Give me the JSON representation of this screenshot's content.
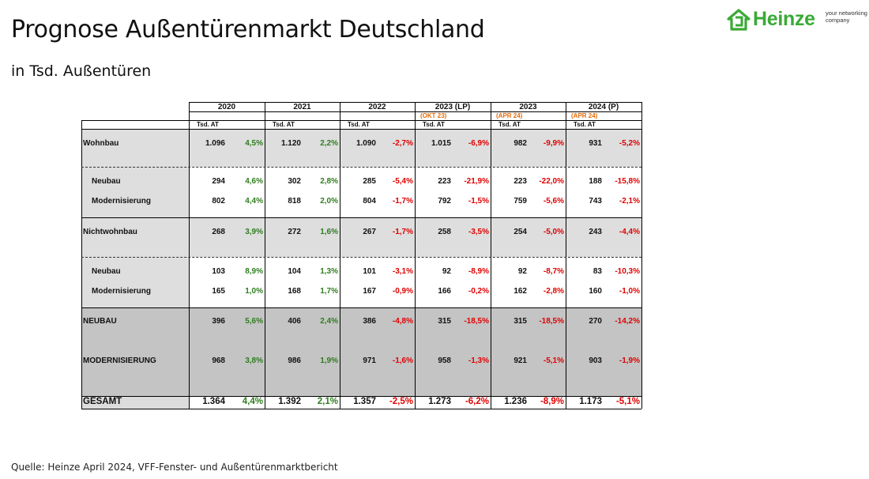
{
  "page": {
    "title": "Prognose Außentürenmarkt Deutschland",
    "subtitle": "in Tsd. Außentüren",
    "source": "Quelle: Heinze April 2024, VFF-Fenster- und Außentürenmarktbericht"
  },
  "logo": {
    "name": "Heinze",
    "tagline": "your networking company",
    "color": "#3aaa35"
  },
  "table": {
    "columns": [
      {
        "year": "2020",
        "note": "",
        "unit": "Tsd. AT"
      },
      {
        "year": "2021",
        "note": "",
        "unit": "Tsd. AT"
      },
      {
        "year": "2022",
        "note": "",
        "unit": "Tsd. AT"
      },
      {
        "year": "2023 (LP)",
        "note": "(OKT 23)",
        "unit": "Tsd. AT"
      },
      {
        "year": "2023",
        "note": "(APR 24)",
        "unit": "Tsd. AT"
      },
      {
        "year": "2024 (P)",
        "note": "(APR 24)",
        "unit": "Tsd. AT"
      }
    ],
    "rows": [
      {
        "label": "Wohnbau",
        "values": [
          "1.096",
          "1.120",
          "1.090",
          "1.015",
          "982",
          "931"
        ],
        "pct": [
          "4,5%",
          "2,2%",
          "-2,7%",
          "-6,9%",
          "-9,9%",
          "-5,2%"
        ]
      },
      {
        "label": "Neubau",
        "values": [
          "294",
          "302",
          "285",
          "223",
          "223",
          "188"
        ],
        "pct": [
          "4,6%",
          "2,8%",
          "-5,4%",
          "-21,9%",
          "-22,0%",
          "-15,8%"
        ]
      },
      {
        "label": "Modernisierung",
        "values": [
          "802",
          "818",
          "804",
          "792",
          "759",
          "743"
        ],
        "pct": [
          "4,4%",
          "2,0%",
          "-1,7%",
          "-1,5%",
          "-5,6%",
          "-2,1%"
        ]
      },
      {
        "label": "Nichtwohnbau",
        "values": [
          "268",
          "272",
          "267",
          "258",
          "254",
          "243"
        ],
        "pct": [
          "3,9%",
          "1,6%",
          "-1,7%",
          "-3,5%",
          "-5,0%",
          "-4,4%"
        ]
      },
      {
        "label": "Neubau",
        "values": [
          "103",
          "104",
          "101",
          "92",
          "92",
          "83"
        ],
        "pct": [
          "8,9%",
          "1,3%",
          "-3,1%",
          "-8,9%",
          "-8,7%",
          "-10,3%"
        ]
      },
      {
        "label": "Modernisierung",
        "values": [
          "165",
          "168",
          "167",
          "166",
          "162",
          "160"
        ],
        "pct": [
          "1,0%",
          "1,7%",
          "-0,9%",
          "-0,2%",
          "-2,8%",
          "-1,0%"
        ]
      },
      {
        "label": "NEUBAU",
        "values": [
          "396",
          "406",
          "386",
          "315",
          "315",
          "270"
        ],
        "pct": [
          "5,6%",
          "2,4%",
          "-4,8%",
          "-18,5%",
          "-18,5%",
          "-14,2%"
        ]
      },
      {
        "label": "MODERNISIERUNG",
        "values": [
          "968",
          "986",
          "971",
          "958",
          "921",
          "903"
        ],
        "pct": [
          "3,8%",
          "1,9%",
          "-1,6%",
          "-1,3%",
          "-5,1%",
          "-1,9%"
        ]
      },
      {
        "label": "GESAMT",
        "values": [
          "1.364",
          "1.392",
          "1.357",
          "1.273",
          "1.236",
          "1.173"
        ],
        "pct": [
          "4,4%",
          "2,1%",
          "-2,5%",
          "-6,2%",
          "-8,9%",
          "-5,1%"
        ]
      }
    ]
  }
}
